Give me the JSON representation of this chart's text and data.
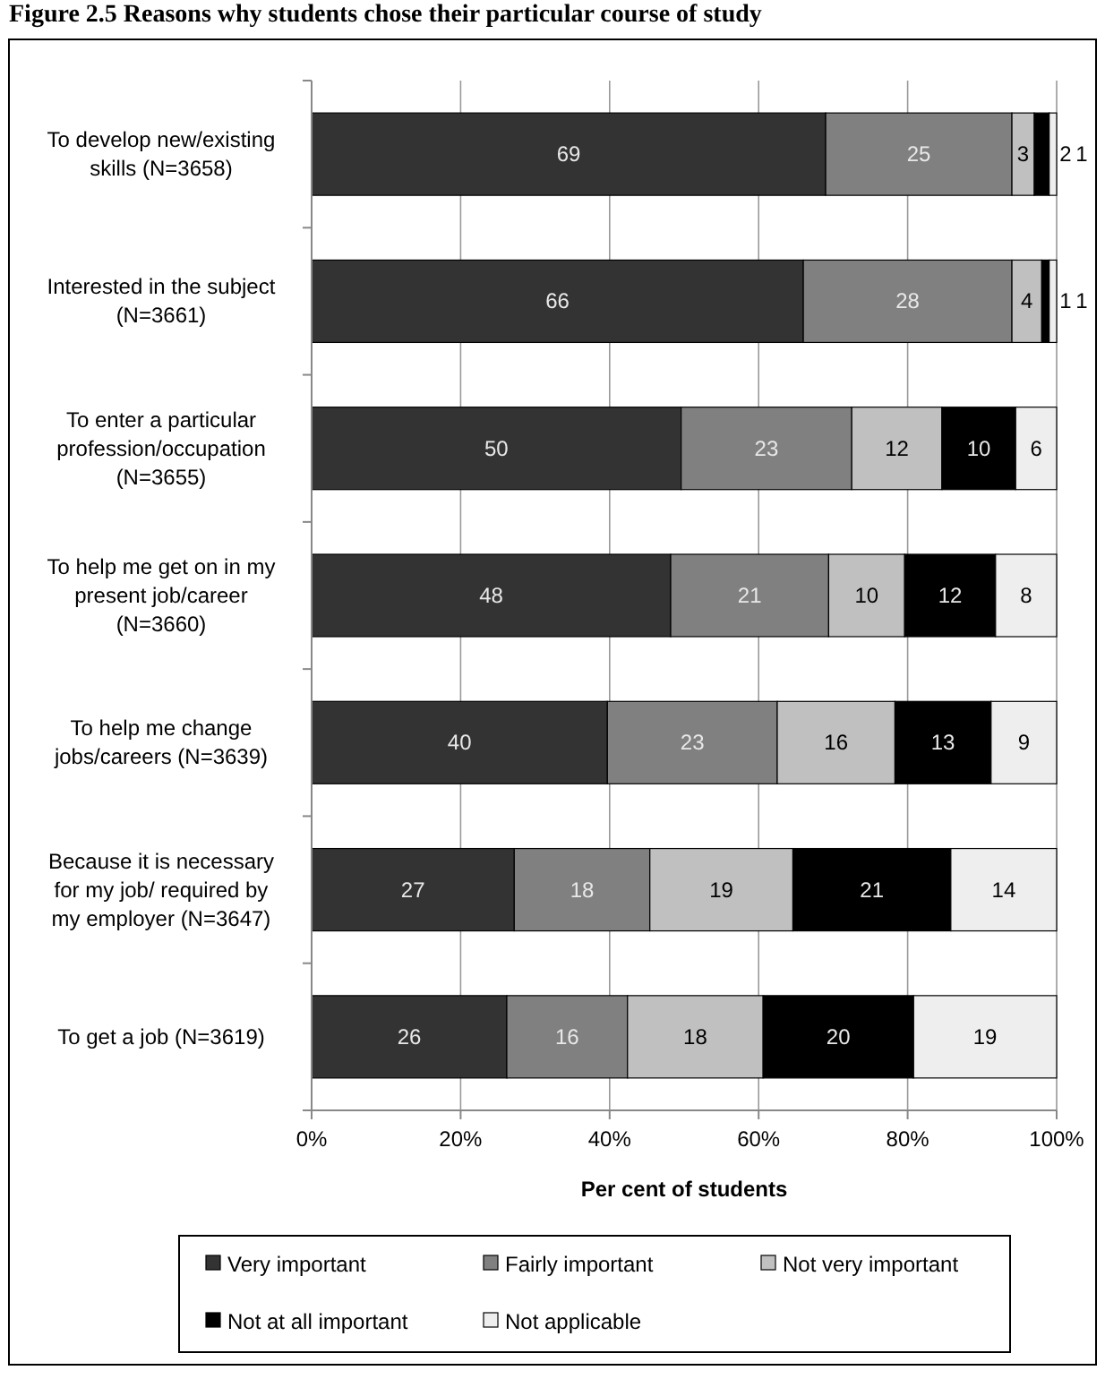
{
  "chart_data": {
    "type": "bar",
    "orientation": "horizontal",
    "stacked": true,
    "title": "Figure 2.5 Reasons why students chose their particular course of study",
    "xlabel": "Per cent of students",
    "categories": [
      "To develop new/existing skills (N=3658)",
      "Interested in the subject (N=3661)",
      "To enter a particular profession/occupation (N=3655)",
      "To help me get on in my present job/career (N=3660)",
      "To help me change jobs/careers (N=3639)",
      "Because it is necessary for my job/ required by my employer (N=3647)",
      "To get a job (N=3619)"
    ],
    "series": [
      {
        "name": "Very important",
        "color": "#333333",
        "values": [
          69,
          66,
          49.6,
          48.2,
          39.7,
          27.2,
          26.2
        ],
        "value_labels": [
          "69",
          "66",
          "50",
          "48",
          "40",
          "27",
          "26"
        ]
      },
      {
        "name": "Fairly important",
        "color": "#808080",
        "values": [
          25,
          28,
          22.9,
          21.2,
          22.8,
          18.2,
          16.2
        ],
        "value_labels": [
          "25",
          "28",
          "23",
          "21",
          "23",
          "18",
          "16"
        ]
      },
      {
        "name": "Not very important",
        "color": "#c0c0c0",
        "values": [
          3,
          4,
          12.1,
          10.2,
          15.8,
          19.2,
          18.2
        ],
        "value_labels": [
          "3",
          "4",
          "12",
          "10",
          "16",
          "19",
          "18"
        ]
      },
      {
        "name": "Not at all important",
        "color": "#000000",
        "values": [
          2,
          1,
          9.9,
          12.2,
          12.9,
          21.2,
          20.2
        ],
        "value_labels": [
          "2",
          "1",
          "10",
          "12",
          "13",
          "21",
          "20"
        ]
      },
      {
        "name": "Not applicable",
        "color": "#eeeeee",
        "values": [
          1,
          1,
          5.5,
          8.2,
          8.8,
          14.2,
          19.2
        ],
        "value_labels": [
          "1",
          "1",
          "6",
          "8",
          "9",
          "14",
          "19"
        ]
      }
    ],
    "xlim": [
      0,
      100
    ],
    "xticks": [
      {
        "value": 0,
        "label": "0%"
      },
      {
        "value": 20,
        "label": "20%"
      },
      {
        "value": 40,
        "label": "40%"
      },
      {
        "value": 60,
        "label": "60%"
      },
      {
        "value": 80,
        "label": "80%"
      },
      {
        "value": 100,
        "label": "100%"
      }
    ],
    "grid": "x",
    "legend": "bottom"
  }
}
